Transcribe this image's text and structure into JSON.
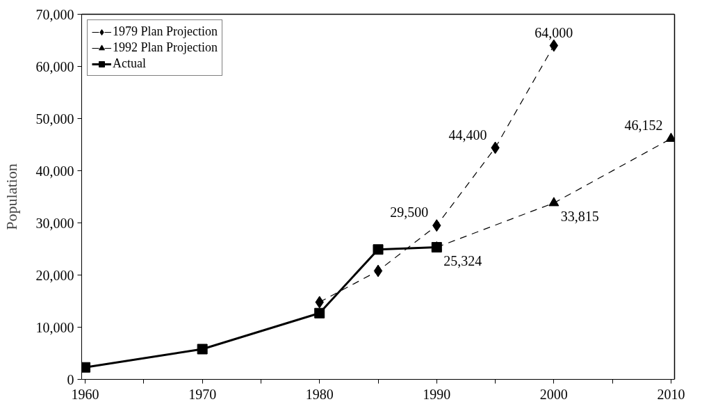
{
  "chart_data": {
    "type": "line",
    "ylabel": "Population",
    "xlim": [
      1959.7,
      2010.3
    ],
    "xticks": [
      1960,
      {
        "value": 1965,
        "label": null
      },
      1970,
      {
        "value": 1975,
        "label": null
      },
      1980,
      {
        "value": 1985,
        "label": null
      },
      1990,
      {
        "value": 1995,
        "label": null
      },
      2000,
      {
        "value": 2005,
        "label": null
      },
      2010
    ],
    "ylim": [
      0,
      70000
    ],
    "yticks": [
      {
        "value": 0,
        "label": "0"
      },
      {
        "value": 10000,
        "label": "10,000"
      },
      {
        "value": 20000,
        "label": "20,000"
      },
      {
        "value": 30000,
        "label": "30,000"
      },
      {
        "value": 40000,
        "label": "40,000"
      },
      {
        "value": 50000,
        "label": "50,000"
      },
      {
        "value": 60000,
        "label": "60,000"
      },
      {
        "value": 70000,
        "label": "70,000"
      }
    ],
    "grid": false,
    "legend": "top left",
    "series": [
      {
        "name": "1979 Plan Projection",
        "color": "#000000",
        "marker": "diamond",
        "line_style": "dashed",
        "x": [
          1980,
          1985,
          1990,
          1995,
          2000
        ],
        "values": [
          14800,
          20800,
          29500,
          44400,
          64000
        ],
        "value_labels": [
          null,
          null,
          "29,500",
          "44,400",
          "64,000"
        ]
      },
      {
        "name": "1992 Plan Projection",
        "color": "#000000",
        "marker": "triangle",
        "line_style": "dashed",
        "x": [
          1990,
          2000,
          2010
        ],
        "values": [
          25324,
          33815,
          46152
        ],
        "value_labels": [
          null,
          "33,815",
          "46,152"
        ]
      },
      {
        "name": "Actual",
        "color": "#000000",
        "marker": "square",
        "line_style": "solid",
        "x": [
          1960,
          1970,
          1980,
          1985,
          1990
        ],
        "values": [
          2300,
          5800,
          12700,
          24900,
          25324
        ],
        "value_labels": [
          null,
          null,
          null,
          null,
          "25,324"
        ]
      }
    ]
  }
}
